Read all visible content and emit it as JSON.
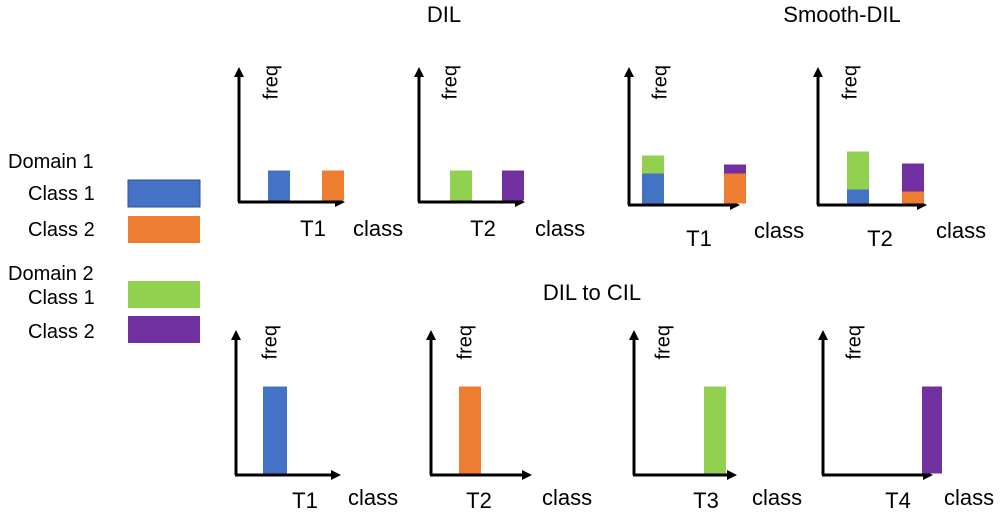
{
  "titles": {
    "dil": "DIL",
    "smooth_dil": "Smooth-DIL",
    "dil_to_cil": "DIL to CIL"
  },
  "axis_labels": {
    "y": "freq",
    "x": "class"
  },
  "colors": {
    "d1c1": "#4472c4",
    "d1c2": "#ed7d31",
    "d2c1": "#92d050",
    "d2c2": "#7030a0"
  },
  "legend": [
    {
      "heading": "Domain 1",
      "items": [
        {
          "label": "Class 1",
          "color_key": "d1c1"
        },
        {
          "label": "Class 2",
          "color_key": "d1c2"
        }
      ]
    },
    {
      "heading": "Domain 2",
      "items": [
        {
          "label": "Class 1",
          "color_key": "d2c1"
        },
        {
          "label": "Class 2",
          "color_key": "d2c2"
        }
      ]
    }
  ],
  "panels": [
    {
      "id": "dil-t1",
      "task": "T1",
      "bars": [
        {
          "slot": 0,
          "segments": [
            {
              "color_key": "d1c1",
              "value": 1
            }
          ]
        },
        {
          "slot": 1,
          "segments": [
            {
              "color_key": "d1c2",
              "value": 1
            }
          ]
        }
      ]
    },
    {
      "id": "dil-t2",
      "task": "T2",
      "bars": [
        {
          "slot": 0,
          "segments": [
            {
              "color_key": "d2c1",
              "value": 1
            }
          ]
        },
        {
          "slot": 1,
          "segments": [
            {
              "color_key": "d2c2",
              "value": 1
            }
          ]
        }
      ]
    },
    {
      "id": "smooth-t1",
      "task": "T1",
      "bars": [
        {
          "slot": 0,
          "segments": [
            {
              "color_key": "d1c1",
              "value": 1
            },
            {
              "color_key": "d2c1",
              "value": 0.6
            }
          ]
        },
        {
          "slot": 1,
          "segments": [
            {
              "color_key": "d1c2",
              "value": 1
            },
            {
              "color_key": "d2c2",
              "value": 0.3
            }
          ]
        }
      ]
    },
    {
      "id": "smooth-t2",
      "task": "T2",
      "bars": [
        {
          "slot": 0,
          "segments": [
            {
              "color_key": "d1c1",
              "value": 0.7
            },
            {
              "color_key": "d2c1",
              "value": 1.9
            }
          ]
        },
        {
          "slot": 1,
          "segments": [
            {
              "color_key": "d1c2",
              "value": 0.6
            },
            {
              "color_key": "d2c2",
              "value": 1.4
            }
          ]
        }
      ]
    },
    {
      "id": "cil-t1",
      "task": "T1",
      "bars": [
        {
          "slot": 0,
          "segments": [
            {
              "color_key": "d1c1",
              "value": 3
            }
          ]
        }
      ]
    },
    {
      "id": "cil-t2",
      "task": "T2",
      "bars": [
        {
          "slot": 0,
          "segments": [
            {
              "color_key": "d1c2",
              "value": 3
            }
          ]
        }
      ]
    },
    {
      "id": "cil-t3",
      "task": "T3",
      "bars": [
        {
          "slot": 0,
          "segments": [
            {
              "color_key": "d2c1",
              "value": 3
            }
          ]
        }
      ]
    },
    {
      "id": "cil-t4",
      "task": "T4",
      "bars": [
        {
          "slot": 0,
          "segments": [
            {
              "color_key": "d2c2",
              "value": 3
            }
          ]
        }
      ]
    }
  ]
}
